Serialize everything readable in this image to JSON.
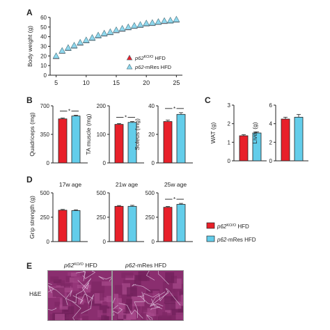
{
  "colors": {
    "ko": "#e8202a",
    "mres": "#63cdea",
    "mres_tri": "#8fd8ee",
    "ink": "#222222",
    "he_base": "#8a2e6f"
  },
  "chart_data": [
    {
      "panel": "A",
      "type": "scatter",
      "ylabel": "Body weight (g)",
      "xlim": [
        4,
        26
      ],
      "ylim": [
        0,
        60
      ],
      "xticks": [
        "5",
        "10",
        "15",
        "20",
        "25"
      ],
      "yticks": [
        "0",
        "10",
        "20",
        "30",
        "40",
        "50",
        "60"
      ],
      "legend_placement": "right",
      "series": [
        {
          "name": "p62KO/O HFD",
          "marker": "triangle",
          "x": [
            5,
            6,
            7,
            8,
            9,
            10,
            11,
            12,
            13,
            14,
            15,
            16,
            17,
            18,
            19,
            20,
            21,
            22,
            23,
            24,
            25
          ],
          "y": [
            20,
            25.5,
            28.5,
            31,
            34,
            36.5,
            39,
            41.5,
            43.5,
            45,
            47,
            48.5,
            50,
            51.5,
            52.5,
            54,
            54.5,
            55.5,
            56.5,
            57,
            58
          ]
        },
        {
          "name": "p62-mRes HFD",
          "marker": "triangle",
          "x": [
            5,
            6,
            7,
            8,
            9,
            10,
            11,
            12,
            13,
            14,
            15,
            16,
            17,
            18,
            19,
            20,
            21,
            22,
            23,
            24,
            25
          ],
          "y": [
            20,
            25.5,
            28.5,
            31,
            34,
            36.5,
            39,
            41.5,
            43.5,
            45,
            47,
            48.5,
            50,
            51.5,
            52.5,
            54,
            54.5,
            55.5,
            56.5,
            57,
            58
          ]
        }
      ]
    },
    {
      "panel": "B",
      "type": "bar",
      "ylabel": "Quadriceps (mg)",
      "ylim": [
        0,
        700
      ],
      "yticks": [
        "0",
        "350",
        "700"
      ],
      "values": [
        540,
        575
      ],
      "errors": [
        10,
        10
      ],
      "significance": "*"
    },
    {
      "panel": "B",
      "type": "bar",
      "ylabel": "TA muscle (mg)",
      "ylim": [
        0,
        200
      ],
      "yticks": [
        "0",
        "100",
        "200"
      ],
      "values": [
        135,
        142
      ],
      "errors": [
        3,
        3
      ],
      "significance": "*"
    },
    {
      "panel": "B",
      "type": "bar",
      "ylabel": "Soleus (mg)",
      "ylim": [
        0,
        40
      ],
      "yticks": [
        "0",
        "20",
        "40"
      ],
      "values": [
        29,
        34
      ],
      "errors": [
        1,
        1.2
      ],
      "significance": "*"
    },
    {
      "panel": "C",
      "type": "bar",
      "ylabel": "WAT (g)",
      "ylim": [
        0,
        3
      ],
      "yticks": [
        "0",
        "1",
        "2",
        "3"
      ],
      "values": [
        1.35,
        1.5
      ],
      "errors": [
        0.06,
        0.06
      ]
    },
    {
      "panel": "C",
      "type": "bar",
      "ylabel": "Liver (g)",
      "ylim": [
        0,
        6
      ],
      "yticks": [
        "0",
        "2",
        "4",
        "6"
      ],
      "values": [
        4.5,
        4.7
      ],
      "errors": [
        0.2,
        0.3
      ]
    },
    {
      "panel": "D",
      "type": "bar",
      "title": "17w age",
      "ylabel": "Grip strength (g)",
      "ylim": [
        0,
        500
      ],
      "yticks": [
        "0",
        "250",
        "500"
      ],
      "values": [
        322,
        318
      ],
      "errors": [
        8,
        8
      ]
    },
    {
      "panel": "D",
      "type": "bar",
      "title": "21w age",
      "ylim": [
        0,
        500
      ],
      "yticks": [
        "0",
        "250",
        "500"
      ],
      "values": [
        362,
        362
      ],
      "errors": [
        8,
        10
      ]
    },
    {
      "panel": "D",
      "type": "bar",
      "title": "25w age",
      "ylim": [
        0,
        500
      ],
      "yticks": [
        "0",
        "250",
        "500"
      ],
      "values": [
        352,
        382
      ],
      "errors": [
        8,
        10
      ],
      "significance": "*"
    }
  ],
  "panel_letters": [
    "A",
    "B",
    "C",
    "D",
    "E"
  ],
  "legend_d": {
    "ko": "p62KO/O HFD",
    "mres": "p62-mRes HFD"
  },
  "panel_e": {
    "ko_title": "p62KO/O HFD",
    "mres_title": "p62-mRes HFD",
    "row_label": "H&E"
  }
}
